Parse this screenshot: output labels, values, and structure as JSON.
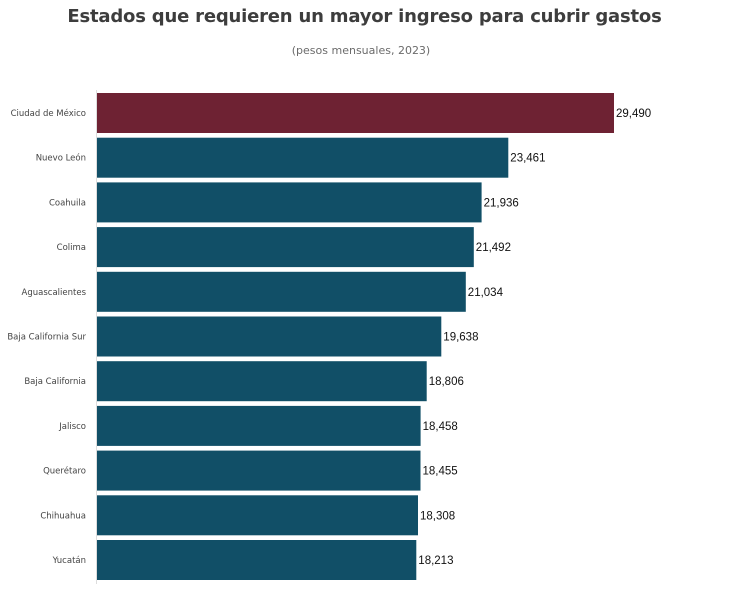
{
  "chart_data": {
    "type": "bar",
    "orientation": "horizontal",
    "title": "Estados que requieren un mayor ingreso para cubrir gastos",
    "subtitle": "(pesos mensuales, 2023)",
    "categories": [
      "Ciudad de México",
      "Nuevo León",
      "Coahuila",
      "Colima",
      "Aguascalientes",
      "Baja California Sur",
      "Baja California",
      "Jalisco",
      "Querétaro",
      "Chihuahua",
      "Yucatán"
    ],
    "values": [
      29490,
      23461,
      21936,
      21492,
      21034,
      19638,
      18806,
      18458,
      18455,
      18308,
      18213
    ],
    "value_labels": [
      "29,490",
      "23,461",
      "21,936",
      "21,492",
      "21,034",
      "19,638",
      "18,806",
      "18,458",
      "18,455",
      "18,308",
      "18,213"
    ],
    "xlim": [
      0,
      29490
    ],
    "grid": false,
    "legend": "none",
    "colors": {
      "highlight": "#6e2233",
      "default": "#114f67"
    },
    "highlight_index": 0
  }
}
